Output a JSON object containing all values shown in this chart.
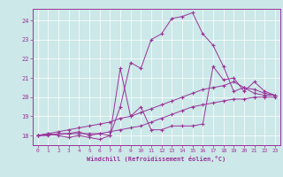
{
  "xlabel": "Windchill (Refroidissement éolien,°C)",
  "background_color": "#cce8e8",
  "line_color": "#993399",
  "grid_color": "#ffffff",
  "xlim": [
    -0.5,
    23.5
  ],
  "ylim": [
    17.5,
    24.6
  ],
  "xticks": [
    0,
    1,
    2,
    3,
    4,
    5,
    6,
    7,
    8,
    9,
    10,
    11,
    12,
    13,
    14,
    15,
    16,
    17,
    18,
    19,
    20,
    21,
    22,
    23
  ],
  "yticks": [
    18,
    19,
    20,
    21,
    22,
    23,
    24
  ],
  "lines": [
    {
      "x": [
        0,
        1,
        2,
        3,
        4,
        5,
        6,
        7,
        8,
        9,
        10,
        11,
        12,
        13,
        14,
        15,
        16,
        17,
        18,
        19,
        20,
        21,
        22,
        23
      ],
      "y": [
        18.0,
        18.1,
        18.0,
        17.9,
        18.0,
        17.9,
        17.8,
        18.0,
        19.5,
        21.8,
        21.5,
        23.0,
        23.3,
        24.1,
        24.2,
        24.4,
        23.3,
        22.7,
        21.6,
        20.3,
        20.5,
        20.2,
        20.1,
        20.1
      ]
    },
    {
      "x": [
        0,
        3,
        4,
        5,
        6,
        7,
        8,
        9,
        10,
        11,
        12,
        13,
        14,
        15,
        16,
        17,
        18,
        19,
        20,
        21,
        22,
        23
      ],
      "y": [
        18.0,
        18.1,
        18.2,
        18.0,
        18.1,
        18.0,
        21.5,
        19.0,
        19.5,
        18.3,
        18.3,
        18.5,
        18.5,
        18.5,
        18.6,
        21.6,
        20.9,
        21.0,
        20.3,
        20.8,
        20.3,
        20.1
      ]
    },
    {
      "x": [
        0,
        1,
        2,
        3,
        4,
        5,
        6,
        7,
        8,
        9,
        10,
        11,
        12,
        13,
        14,
        15,
        16,
        17,
        18,
        19,
        20,
        21,
        22,
        23
      ],
      "y": [
        18.0,
        18.1,
        18.2,
        18.3,
        18.4,
        18.5,
        18.6,
        18.7,
        18.9,
        19.0,
        19.2,
        19.4,
        19.6,
        19.8,
        20.0,
        20.2,
        20.4,
        20.5,
        20.6,
        20.8,
        20.5,
        20.4,
        20.2,
        20.1
      ]
    },
    {
      "x": [
        0,
        1,
        2,
        3,
        4,
        5,
        6,
        7,
        8,
        9,
        10,
        11,
        12,
        13,
        14,
        15,
        16,
        17,
        18,
        19,
        20,
        21,
        22,
        23
      ],
      "y": [
        18.0,
        18.0,
        18.1,
        18.1,
        18.1,
        18.1,
        18.1,
        18.2,
        18.3,
        18.4,
        18.5,
        18.7,
        18.9,
        19.1,
        19.3,
        19.5,
        19.6,
        19.7,
        19.8,
        19.9,
        19.9,
        20.0,
        20.0,
        20.0
      ]
    }
  ]
}
